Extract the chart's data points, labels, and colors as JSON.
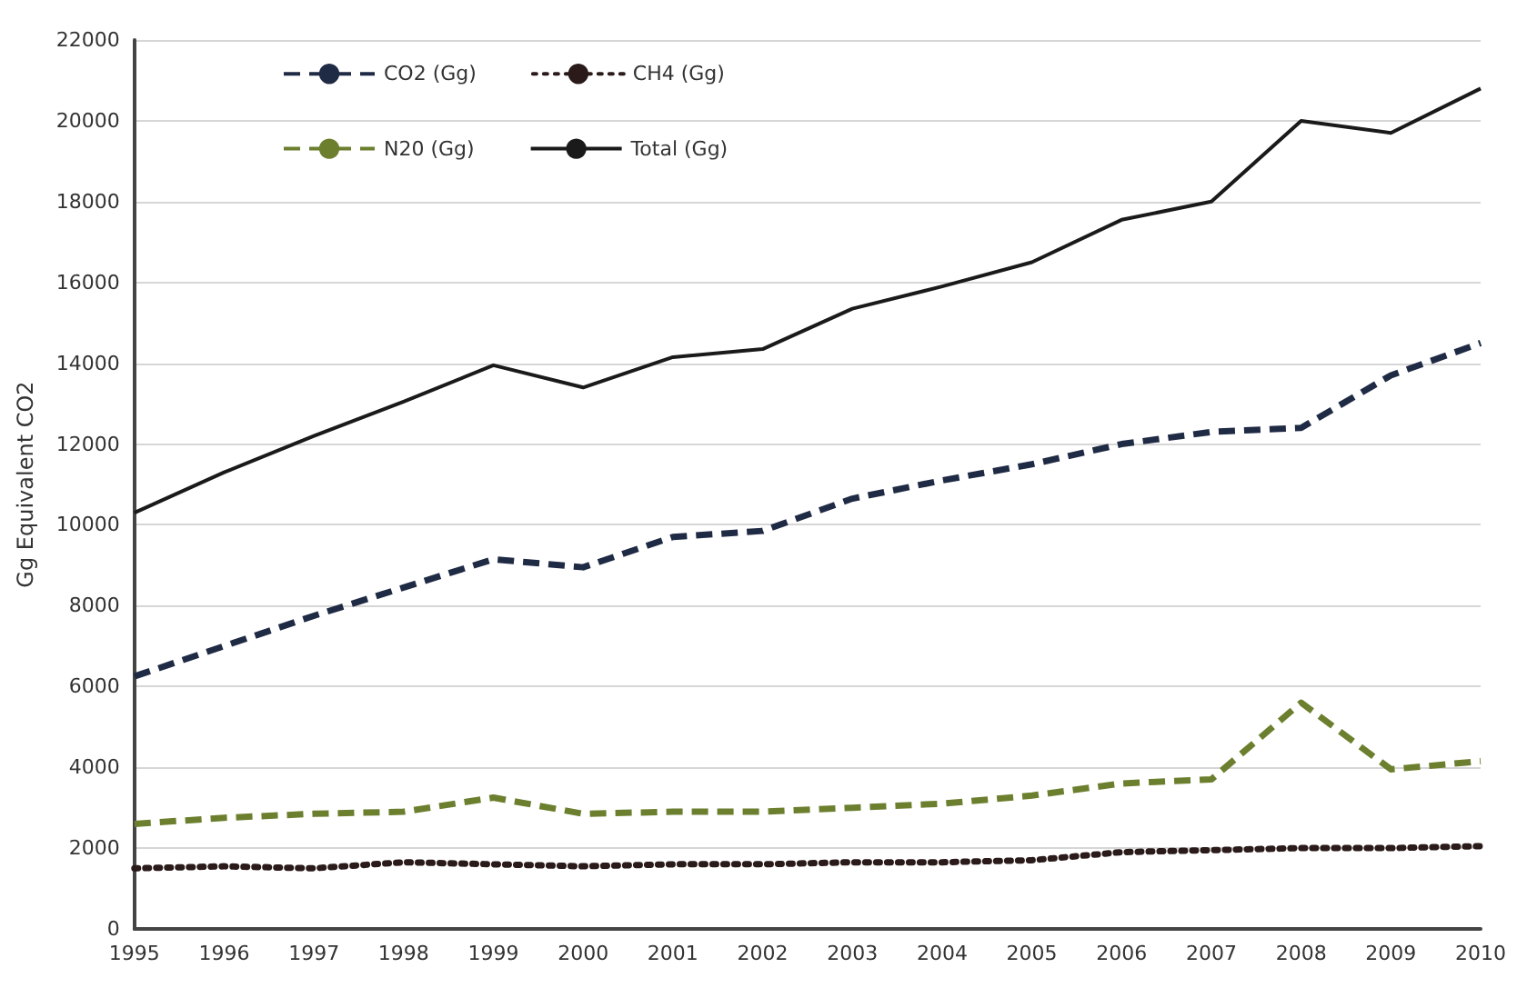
{
  "chart_data": {
    "type": "line",
    "ylabel": "Gg Equivalent CO2",
    "categories": [
      "1995",
      "1996",
      "1997",
      "1998",
      "1999",
      "2000",
      "2001",
      "2002",
      "2003",
      "2004",
      "2005",
      "2006",
      "2007",
      "2008",
      "2009",
      "2010"
    ],
    "series": [
      {
        "name": "CO2 (Gg)",
        "color": "#1f2a44",
        "line_style": "dashed",
        "values": [
          6250,
          7000,
          7750,
          8450,
          9150,
          8950,
          9700,
          9850,
          10650,
          11100,
          11500,
          12000,
          12300,
          12400,
          13700,
          14500
        ]
      },
      {
        "name": "CH4 (Gg)",
        "color": "#2a1a1a",
        "line_style": "dotted",
        "values": [
          1500,
          1550,
          1500,
          1650,
          1600,
          1550,
          1600,
          1600,
          1650,
          1650,
          1700,
          1900,
          1950,
          2000,
          2000,
          2050
        ]
      },
      {
        "name": "N20 (Gg)",
        "color": "#6b7f2e",
        "line_style": "dashed",
        "values": [
          2600,
          2750,
          2850,
          2900,
          3250,
          2850,
          2900,
          2900,
          3000,
          3100,
          3300,
          3600,
          3700,
          5600,
          3950,
          4150
        ]
      },
      {
        "name": "Total (Gg)",
        "color": "#1a1a1a",
        "line_style": "solid",
        "values": [
          10300,
          11300,
          12200,
          13050,
          13950,
          13400,
          14150,
          14350,
          15350,
          15900,
          16500,
          17550,
          18000,
          20000,
          19700,
          20800
        ]
      }
    ],
    "ylim": [
      0,
      22000
    ],
    "yticks": [
      0,
      2000,
      4000,
      6000,
      8000,
      10000,
      12000,
      14000,
      16000,
      18000,
      20000,
      22000
    ],
    "grid": "y",
    "legend": "top left",
    "marker": "none"
  }
}
